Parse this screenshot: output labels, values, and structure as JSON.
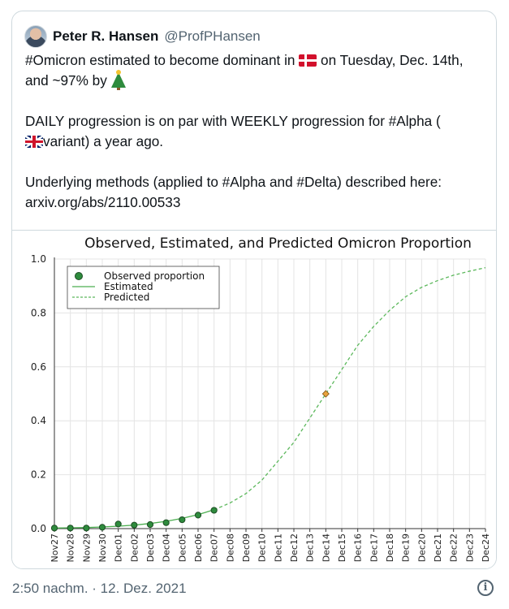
{
  "author": {
    "name": "Peter R. Hansen",
    "handle": "@ProfPHansen"
  },
  "tweet": {
    "line1_a": "#Omicron estimated to become dominant in ",
    "line1_b": " on Tuesday, Dec. 14th, and ~97% by ",
    "line2_a": "DAILY progression is on par with WEEKLY progression for #Alpha (",
    "line2_b": "variant) a year ago.",
    "line3": "Underlying methods (applied to #Alpha and #Delta) described here: arxiv.org/abs/2110.00533",
    "icons": [
      "flag-denmark-icon",
      "christmas-tree-icon",
      "flag-uk-icon"
    ]
  },
  "chart_data": {
    "type": "line",
    "title": "Observed, Estimated, and Predicted Omicron Proportion",
    "categories": [
      "Nov27",
      "Nov28",
      "Nov29",
      "Nov30",
      "Dec01",
      "Dec02",
      "Dec03",
      "Dec04",
      "Dec05",
      "Dec06",
      "Dec07",
      "Dec08",
      "Dec09",
      "Dec10",
      "Dec11",
      "Dec12",
      "Dec13",
      "Dec14",
      "Dec15",
      "Dec16",
      "Dec17",
      "Dec18",
      "Dec19",
      "Dec20",
      "Dec21",
      "Dec22",
      "Dec23",
      "Dec24"
    ],
    "ylim": [
      0,
      1
    ],
    "yticks": [
      "0.0",
      "0.2",
      "0.4",
      "0.6",
      "0.8",
      "1.0"
    ],
    "grid": true,
    "legend_position": "top-left",
    "series": [
      {
        "name": "Observed proportion",
        "style": "points",
        "color": "#2e8b3d",
        "x": [
          "Nov27",
          "Nov28",
          "Nov29",
          "Nov30",
          "Dec01",
          "Dec02",
          "Dec03",
          "Dec04",
          "Dec05",
          "Dec06",
          "Dec07"
        ],
        "values": [
          0.002,
          0.002,
          0.002,
          0.005,
          0.017,
          0.013,
          0.015,
          0.022,
          0.033,
          0.05,
          0.068
        ]
      },
      {
        "name": "Estimated",
        "style": "solid",
        "color": "#4caf50",
        "x": [
          "Nov27",
          "Nov28",
          "Nov29",
          "Nov30",
          "Dec01",
          "Dec02",
          "Dec03",
          "Dec04",
          "Dec05",
          "Dec06",
          "Dec07"
        ],
        "values": [
          0.002,
          0.003,
          0.004,
          0.006,
          0.009,
          0.013,
          0.019,
          0.027,
          0.038,
          0.052,
          0.07
        ]
      },
      {
        "name": "Predicted",
        "style": "dashed",
        "color": "#5cb85c",
        "x": [
          "Dec07",
          "Dec08",
          "Dec09",
          "Dec10",
          "Dec11",
          "Dec12",
          "Dec13",
          "Dec14",
          "Dec15",
          "Dec16",
          "Dec17",
          "Dec18",
          "Dec19",
          "Dec20",
          "Dec21",
          "Dec22",
          "Dec23",
          "Dec24"
        ],
        "values": [
          0.07,
          0.095,
          0.13,
          0.18,
          0.25,
          0.32,
          0.41,
          0.5,
          0.59,
          0.68,
          0.75,
          0.81,
          0.86,
          0.895,
          0.92,
          0.94,
          0.955,
          0.968
        ]
      }
    ],
    "marker": {
      "x": "Dec14",
      "y": 0.5,
      "color": "#e8a33d"
    }
  },
  "footer": {
    "timestamp": "2:50 nachm. · 12. Dez. 2021"
  }
}
